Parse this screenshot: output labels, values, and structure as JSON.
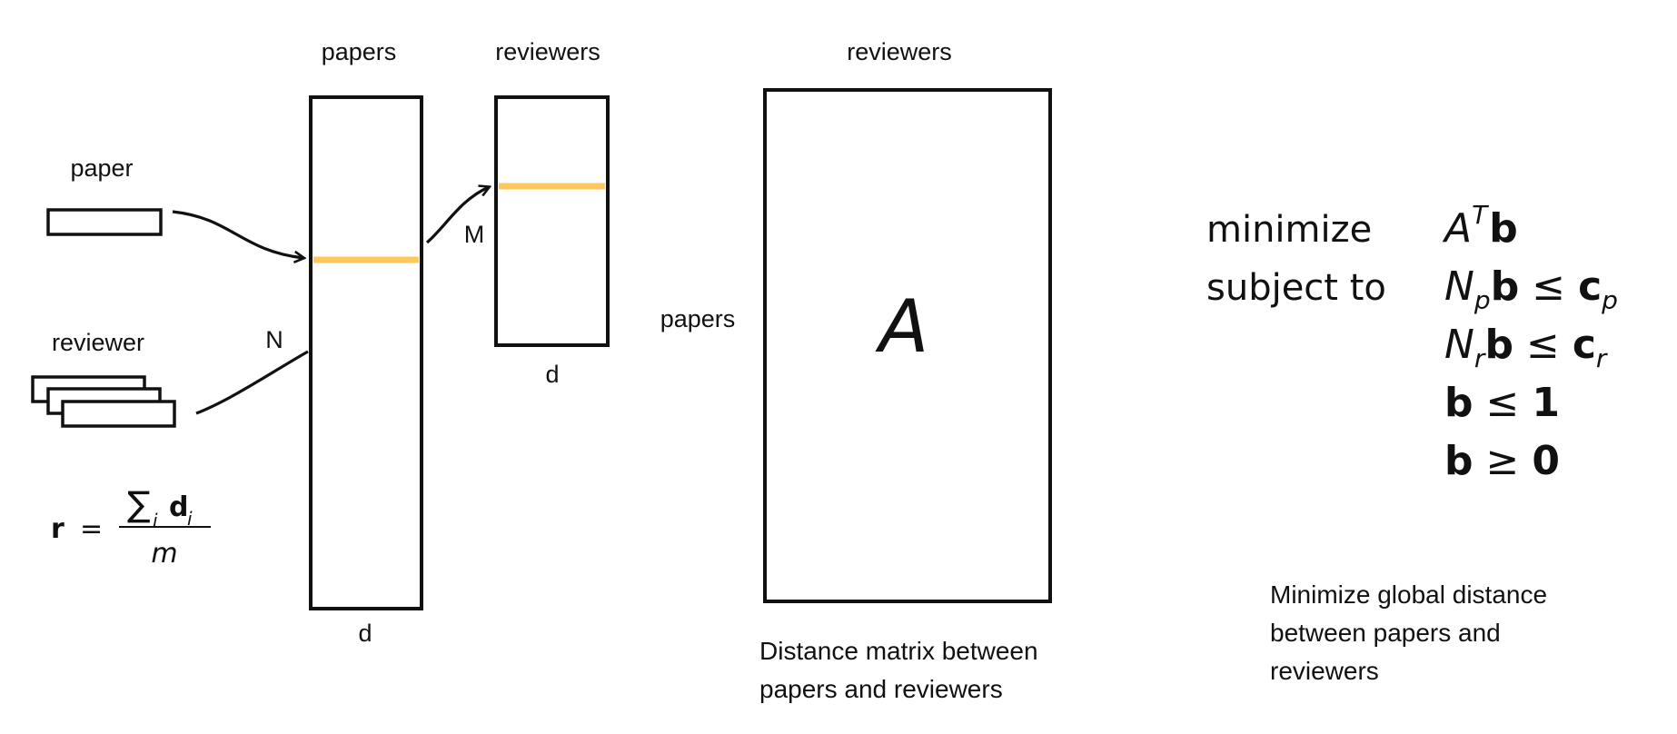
{
  "labels": {
    "papers_top": "papers",
    "reviewers_top_small": "reviewers",
    "reviewers_top_big": "reviewers",
    "paper": "paper",
    "reviewer": "reviewer",
    "N": "N",
    "M": "M",
    "d_papers": "d",
    "d_reviewers": "d",
    "papers_side": "papers",
    "matrix_symbol": "A"
  },
  "formula_r": {
    "lhs": "r",
    "equals": "=",
    "numerator_sum": "∑",
    "numerator_sub": "i",
    "numerator_d": "d",
    "numerator_d_sub": "i",
    "denominator": "m"
  },
  "optimization": {
    "objective_keyword": "minimize",
    "constraint_keyword": "subject to",
    "objective": {
      "base": "A",
      "sup": "T",
      "vec": "b"
    },
    "constraints": [
      {
        "base": "N",
        "sub": "p",
        "vec": "b",
        "op": "≤",
        "rhs": "c",
        "rhs_sub": "p"
      },
      {
        "base": "N",
        "sub": "r",
        "vec": "b",
        "op": "≤",
        "rhs": "c",
        "rhs_sub": "r"
      },
      {
        "base": "",
        "sub": "",
        "vec": "b",
        "op": "≤",
        "rhs": "1",
        "rhs_sub": ""
      },
      {
        "base": "",
        "sub": "",
        "vec": "b",
        "op": "≥",
        "rhs": "0",
        "rhs_sub": ""
      }
    ]
  },
  "captions": {
    "distance_matrix": [
      "Distance matrix between",
      "papers and reviewers"
    ],
    "global_distance": [
      "Minimize global distance",
      "between papers and",
      "reviewers"
    ]
  },
  "colors": {
    "highlight": "#FFC85A",
    "stroke": "#111111"
  }
}
